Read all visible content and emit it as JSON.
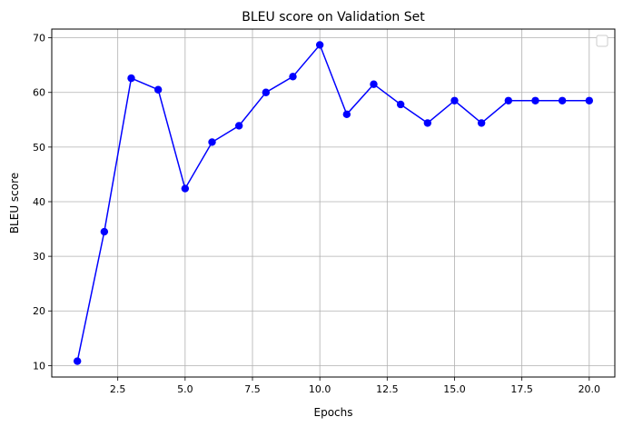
{
  "chart_data": {
    "type": "line",
    "title": "BLEU score on Validation Set",
    "xlabel": "Epochs",
    "ylabel": "BLEU score",
    "xlim": [
      0.05,
      20.95
    ],
    "ylim": [
      7.9,
      71.6
    ],
    "xticks": [
      2.5,
      5.0,
      7.5,
      10.0,
      12.5,
      15.0,
      17.5,
      20.0
    ],
    "xtick_labels": [
      "2.5",
      "5.0",
      "7.5",
      "10.0",
      "12.5",
      "15.0",
      "17.5",
      "20.0"
    ],
    "yticks": [
      10,
      20,
      30,
      40,
      50,
      60,
      70
    ],
    "ytick_labels": [
      "10",
      "20",
      "30",
      "40",
      "50",
      "60",
      "70"
    ],
    "grid": true,
    "legend": "top-right (empty)",
    "series": [
      {
        "color": "#0000ff",
        "marker": "circle",
        "x": [
          1,
          2,
          3,
          4,
          5,
          6,
          7,
          8,
          9,
          10,
          11,
          12,
          13,
          14,
          15,
          16,
          17,
          18,
          19,
          20
        ],
        "y": [
          10.8,
          34.5,
          62.6,
          60.5,
          42.4,
          50.9,
          53.9,
          60.0,
          62.9,
          68.7,
          56.0,
          61.5,
          57.8,
          54.4,
          58.5,
          54.4,
          58.5,
          58.5,
          58.5,
          58.5
        ]
      }
    ]
  }
}
